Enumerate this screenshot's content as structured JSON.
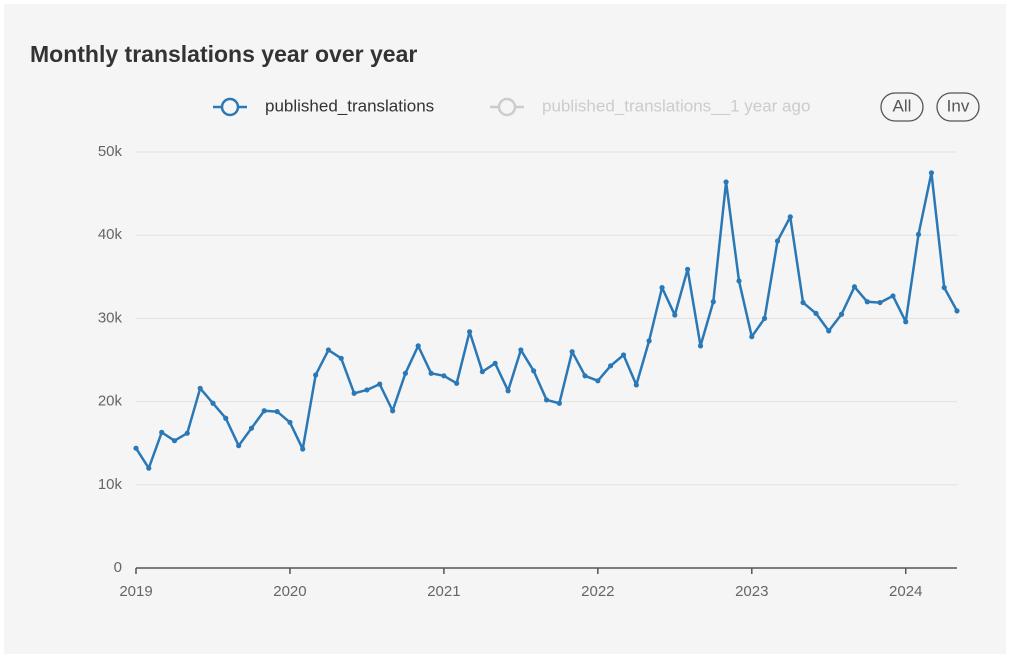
{
  "chart_data": {
    "type": "line",
    "title": "Monthly translations year over year",
    "series": [
      {
        "name": "published_translations",
        "color": "#2a78b5",
        "x": [
          2019,
          2019.083,
          2019.167,
          2019.25,
          2019.333,
          2019.417,
          2019.5,
          2019.583,
          2019.667,
          2019.75,
          2019.833,
          2019.917,
          2020,
          2020.083,
          2020.167,
          2020.25,
          2020.333,
          2020.417,
          2020.5,
          2020.583,
          2020.667,
          2020.75,
          2020.833,
          2020.917,
          2021,
          2021.083,
          2021.167,
          2021.25,
          2021.333,
          2021.417,
          2021.5,
          2021.583,
          2021.667,
          2021.75,
          2021.833,
          2021.917,
          2022,
          2022.083,
          2022.167,
          2022.25,
          2022.333,
          2022.417,
          2022.5,
          2022.583,
          2022.667,
          2022.75,
          2022.833,
          2022.917,
          2023,
          2023.083,
          2023.167,
          2023.25,
          2023.333,
          2023.417,
          2023.5,
          2023.583,
          2023.667,
          2023.75,
          2023.833,
          2023.917,
          2024,
          2024.083,
          2024.167,
          2024.25,
          2024.333
        ],
        "values": [
          14400,
          12000,
          16300,
          15300,
          16200,
          21600,
          19800,
          18000,
          14700,
          16800,
          18900,
          18800,
          17500,
          14300,
          23200,
          26200,
          25200,
          21000,
          21400,
          22100,
          18900,
          23400,
          26700,
          23400,
          23100,
          22200,
          28400,
          23600,
          24600,
          21300,
          26200,
          23700,
          20200,
          19800,
          26000,
          23100,
          22500,
          24300,
          25600,
          22000,
          27300,
          33700,
          30400,
          35900,
          26700,
          32000,
          46400,
          34500,
          27800,
          30000,
          39300,
          42200,
          31900,
          30600,
          28500,
          30500,
          33800,
          32000,
          31900,
          32700,
          29600,
          40100,
          47500,
          33700,
          30900
        ]
      },
      {
        "name": "published_translations__1 year ago",
        "color": "#cccccc",
        "visible": false
      }
    ],
    "buttons": [
      "All",
      "Inv"
    ],
    "xlim": [
      2019,
      2024.333
    ],
    "xticks": [
      2019,
      2020,
      2021,
      2022,
      2023,
      2024
    ],
    "ylim": [
      0,
      50000
    ],
    "yticks": [
      0,
      {
        "value": 10000,
        "label": "10k"
      },
      {
        "value": 20000,
        "label": "20k"
      },
      {
        "value": 30000,
        "label": "30k"
      },
      {
        "value": 40000,
        "label": "40k"
      },
      {
        "value": 50000,
        "label": "50k"
      }
    ],
    "grid": true
  }
}
